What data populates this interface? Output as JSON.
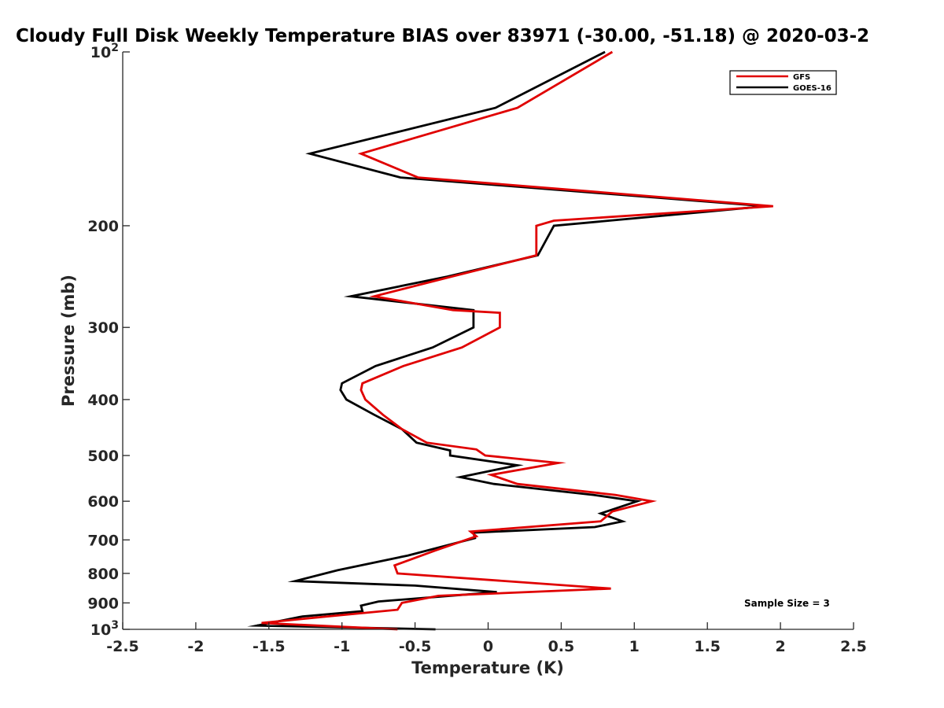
{
  "chart_data": {
    "type": "line",
    "title": "Cloudy Full Disk Weekly Temperature BIAS over 83971 (-30.00, -51.18) @ 2020-03-2",
    "xlabel": "Temperature (K)",
    "ylabel": "Pressure (mb)",
    "xlim": [
      -2.5,
      2.5
    ],
    "ylim": [
      100,
      1000
    ],
    "y_scale": "log",
    "y_reversed": true,
    "x_ticks": [
      -2.5,
      -2,
      -1.5,
      -1,
      -0.5,
      0,
      0.5,
      1,
      1.5,
      2,
      2.5
    ],
    "x_tick_labels": [
      "-2.5",
      "-2",
      "-1.5",
      "-1",
      "-0.5",
      "0",
      "0.5",
      "1",
      "1.5",
      "2",
      "2.5"
    ],
    "y_ticks": [
      100,
      200,
      300,
      400,
      500,
      600,
      700,
      800,
      900,
      1000
    ],
    "y_tick_labels": [
      {
        "base": "10",
        "exp": "2"
      },
      {
        "base": "200"
      },
      {
        "base": "300"
      },
      {
        "base": "400"
      },
      {
        "base": "500"
      },
      {
        "base": "600"
      },
      {
        "base": "700"
      },
      {
        "base": "800"
      },
      {
        "base": "900"
      },
      {
        "base": "10",
        "exp": "3"
      }
    ],
    "grid": false,
    "legend_position": "top-right",
    "annotation": "Sample Size = 3",
    "series": [
      {
        "name": "GFS",
        "color": "#e00000",
        "points": [
          [
            0.85,
            100
          ],
          [
            0.2,
            125
          ],
          [
            -0.87,
            150
          ],
          [
            -0.48,
            165
          ],
          [
            1.95,
            185
          ],
          [
            0.45,
            196
          ],
          [
            0.33,
            200
          ],
          [
            0.33,
            225
          ],
          [
            -0.25,
            245
          ],
          [
            -0.78,
            265
          ],
          [
            -0.24,
            280
          ],
          [
            0.08,
            283
          ],
          [
            0.08,
            300
          ],
          [
            -0.18,
            325
          ],
          [
            -0.58,
            350
          ],
          [
            -0.86,
            375
          ],
          [
            -0.87,
            385
          ],
          [
            -0.84,
            400
          ],
          [
            -0.72,
            425
          ],
          [
            -0.59,
            450
          ],
          [
            -0.42,
            475
          ],
          [
            -0.08,
            488
          ],
          [
            -0.02,
            500
          ],
          [
            0.48,
            515
          ],
          [
            0.02,
            540
          ],
          [
            0.2,
            560
          ],
          [
            0.87,
            585
          ],
          [
            1.12,
            600
          ],
          [
            0.85,
            625
          ],
          [
            0.77,
            650
          ],
          [
            -0.12,
            677
          ],
          [
            -0.08,
            690
          ],
          [
            -0.36,
            730
          ],
          [
            -0.64,
            775
          ],
          [
            -0.62,
            800
          ],
          [
            0.84,
            850
          ],
          [
            -0.34,
            875
          ],
          [
            -0.59,
            900
          ],
          [
            -0.62,
            925
          ],
          [
            -1.1,
            950
          ],
          [
            -1.55,
            975
          ],
          [
            -0.62,
            1000
          ]
        ]
      },
      {
        "name": "GOES-16",
        "color": "#000000",
        "points": [
          [
            0.8,
            100
          ],
          [
            0.05,
            125
          ],
          [
            -1.22,
            150
          ],
          [
            -0.6,
            165
          ],
          [
            1.9,
            185
          ],
          [
            0.45,
            200
          ],
          [
            0.34,
            225
          ],
          [
            -0.28,
            245
          ],
          [
            -0.94,
            265
          ],
          [
            -0.1,
            280
          ],
          [
            -0.1,
            300
          ],
          [
            -0.38,
            325
          ],
          [
            -0.77,
            350
          ],
          [
            -1.0,
            375
          ],
          [
            -1.01,
            385
          ],
          [
            -0.97,
            400
          ],
          [
            -0.78,
            425
          ],
          [
            -0.59,
            450
          ],
          [
            -0.49,
            475
          ],
          [
            -0.26,
            490
          ],
          [
            -0.26,
            500
          ],
          [
            0.2,
            520
          ],
          [
            -0.19,
            545
          ],
          [
            0.04,
            560
          ],
          [
            0.72,
            585
          ],
          [
            1.02,
            600
          ],
          [
            0.77,
            630
          ],
          [
            0.92,
            650
          ],
          [
            0.73,
            665
          ],
          [
            -0.1,
            680
          ],
          [
            -0.09,
            695
          ],
          [
            -0.55,
            745
          ],
          [
            -1.03,
            790
          ],
          [
            -1.32,
            825
          ],
          [
            -0.5,
            840
          ],
          [
            0.06,
            862
          ],
          [
            -0.75,
            895
          ],
          [
            -0.87,
            910
          ],
          [
            -0.86,
            930
          ],
          [
            -1.27,
            950
          ],
          [
            -1.58,
            985
          ],
          [
            -0.36,
            1000
          ]
        ]
      }
    ]
  }
}
